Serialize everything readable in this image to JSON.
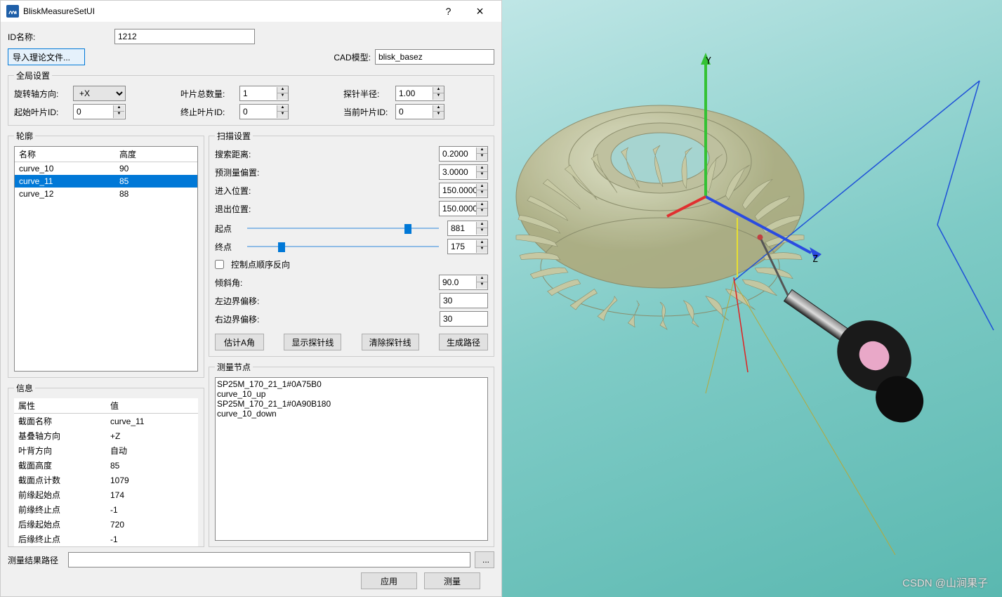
{
  "window": {
    "title": "BliskMeasureSetUI",
    "help": "?",
    "close": "×"
  },
  "id_name": {
    "label": "ID名称:",
    "value": "1212"
  },
  "import_btn": "导入理论文件...",
  "cad_model": {
    "label": "CAD模型:",
    "value": "blisk_basez"
  },
  "global": {
    "legend": "全局设置",
    "rot_axis": {
      "label": "旋转轴方向:",
      "value": "+X"
    },
    "blade_cnt": {
      "label": "叶片总数量:",
      "value": "1"
    },
    "probe_r": {
      "label": "探针半径:",
      "value": "1.00"
    },
    "start_id": {
      "label": "起始叶片ID:",
      "value": "0"
    },
    "end_id": {
      "label": "终止叶片ID:",
      "value": "0"
    },
    "cur_id": {
      "label": "当前叶片ID:",
      "value": "0"
    }
  },
  "profiles": {
    "legend": "轮廓",
    "cols": [
      "名称",
      "高度"
    ],
    "rows": [
      {
        "name": "curve_10",
        "h": "90",
        "sel": false
      },
      {
        "name": "curve_11",
        "h": "85",
        "sel": true
      },
      {
        "name": "curve_12",
        "h": "88",
        "sel": false
      }
    ]
  },
  "info": {
    "legend": "信息",
    "cols": [
      "属性",
      "值"
    ],
    "rows": [
      [
        "截面名称",
        "curve_11"
      ],
      [
        "基叠轴方向",
        "+Z"
      ],
      [
        "叶背方向",
        "自动"
      ],
      [
        "截面高度",
        "85"
      ],
      [
        "截面点计数",
        "1079"
      ],
      [
        "前缘起始点",
        "174"
      ],
      [
        "前缘终止点",
        "-1"
      ],
      [
        "后缘起始点",
        "720"
      ],
      [
        "后缘终止点",
        "-1"
      ]
    ]
  },
  "scan": {
    "legend": "扫描设置",
    "search_dist": {
      "label": "搜索距离:",
      "value": "0.2000"
    },
    "pre_offset": {
      "label": "预测量偏置:",
      "value": "3.0000"
    },
    "enter_pos": {
      "label": "进入位置:",
      "value": "150.0000"
    },
    "exit_pos": {
      "label": "退出位置:",
      "value": "150.0000"
    },
    "start_pt": {
      "label": "起点",
      "value": "881",
      "pct": 82
    },
    "end_pt": {
      "label": "终点",
      "value": "175",
      "pct": 16
    },
    "reverse_cp": {
      "label": "控制点顺序反向",
      "checked": false
    },
    "tilt": {
      "label": "倾斜角:",
      "value": "90.0"
    },
    "left_off": {
      "label": "左边界偏移:",
      "value": "30"
    },
    "right_off": {
      "label": "右边界偏移:",
      "value": "30"
    },
    "btn_estA": "估计A角",
    "btn_show": "显示探针线",
    "btn_clear": "清除探针线",
    "btn_gen": "生成路径"
  },
  "nodes": {
    "legend": "测量节点",
    "items": [
      "SP25M_170_21_1#0A75B0",
      "curve_10_up",
      "SP25M_170_21_1#0A90B180",
      "curve_10_down"
    ]
  },
  "result_path": {
    "label": "测量结果路径",
    "value": "",
    "browse": "..."
  },
  "btn_apply": "应用",
  "btn_measure": "测量",
  "viewport": {
    "axis_y": "Y",
    "axis_z": "Z",
    "watermark": "CSDN @山涧果子",
    "colors": {
      "blisk_edge": "#b8b08c",
      "blisk_fill": "#d6cfa8",
      "probe_body": "#3a3a3a",
      "probe_face": "#e9a8c8",
      "axis_y_col": "#34c234",
      "axis_z_col": "#2a4be0",
      "axis_x_col": "#e03030",
      "line_blue": "#1e50d8",
      "line_yellow": "#d8cc20",
      "line_red": "#e02020"
    }
  }
}
